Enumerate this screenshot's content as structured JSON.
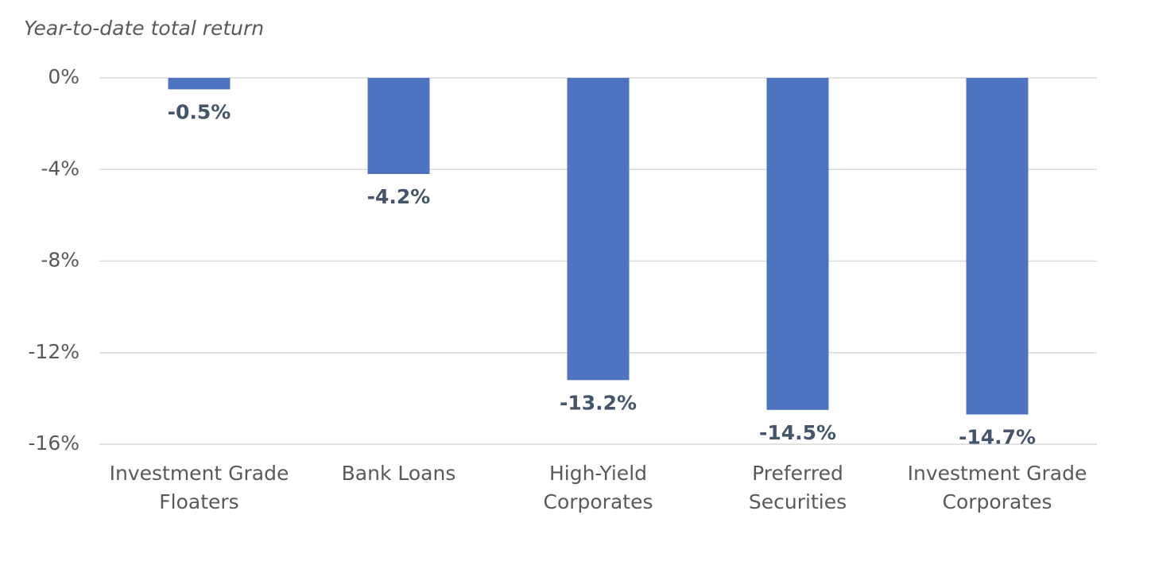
{
  "chart_data": {
    "type": "bar",
    "title": "Year-to-date total return",
    "categories": [
      [
        "Investment Grade",
        "Floaters"
      ],
      [
        "Bank Loans"
      ],
      [
        "High-Yield",
        "Corporates"
      ],
      [
        "Preferred",
        "Securities"
      ],
      [
        "Investment Grade",
        "Corporates"
      ]
    ],
    "values": [
      -0.5,
      -4.2,
      -13.2,
      -14.5,
      -14.7
    ],
    "value_labels": [
      "-0.5%",
      "-4.2%",
      "-13.2%",
      "-14.5%",
      "-14.7%"
    ],
    "color": "#4e74bf",
    "ylim": [
      -16,
      0
    ],
    "yticks": [
      {
        "value": 0,
        "label": "0%"
      },
      {
        "value": -4,
        "label": "-4%"
      },
      {
        "value": -8,
        "label": "-8%"
      },
      {
        "value": -12,
        "label": "-12%"
      },
      {
        "value": -16,
        "label": "-16%"
      }
    ],
    "grid": true
  }
}
